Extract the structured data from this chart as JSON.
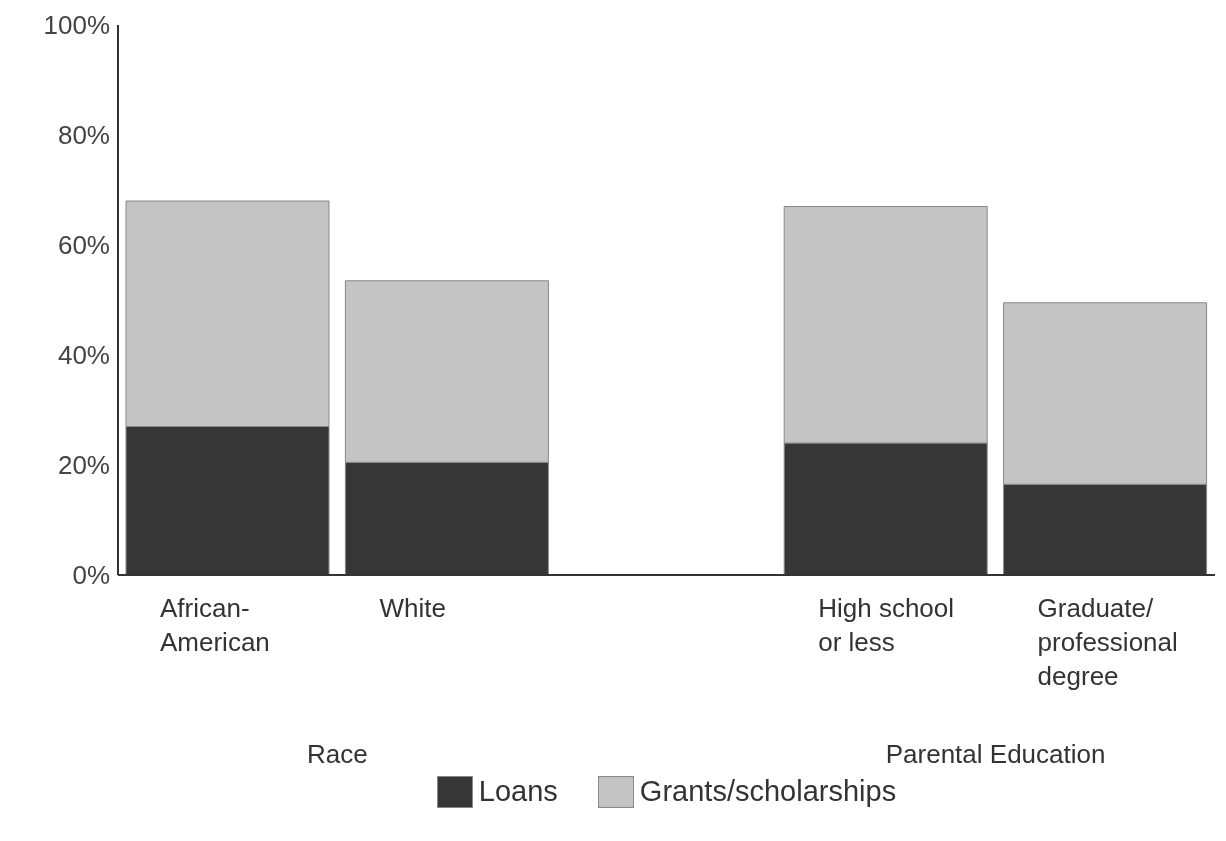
{
  "chart_data": {
    "type": "bar",
    "stacked": true,
    "categories": [
      "African-American",
      "White",
      "High school or less",
      "Graduate/professional degree"
    ],
    "series": [
      {
        "name": "Loans",
        "color": "#363636",
        "values": [
          27,
          20.5,
          24,
          16.5
        ]
      },
      {
        "name": "Grants/scholarships",
        "color": "#c4c4c4",
        "values": [
          41,
          33,
          43,
          33
        ]
      }
    ],
    "ylim": [
      0,
      100
    ],
    "yticks": [
      {
        "value": 0,
        "label": "0%"
      },
      {
        "value": 20,
        "label": "20%"
      },
      {
        "value": 40,
        "label": "40%"
      },
      {
        "value": 60,
        "label": "60%"
      },
      {
        "value": 80,
        "label": "80%"
      },
      {
        "value": 100,
        "label": "100%"
      }
    ],
    "annotations": [
      "Race",
      "Parental Education"
    ],
    "legend": "bottom",
    "grid": false
  }
}
